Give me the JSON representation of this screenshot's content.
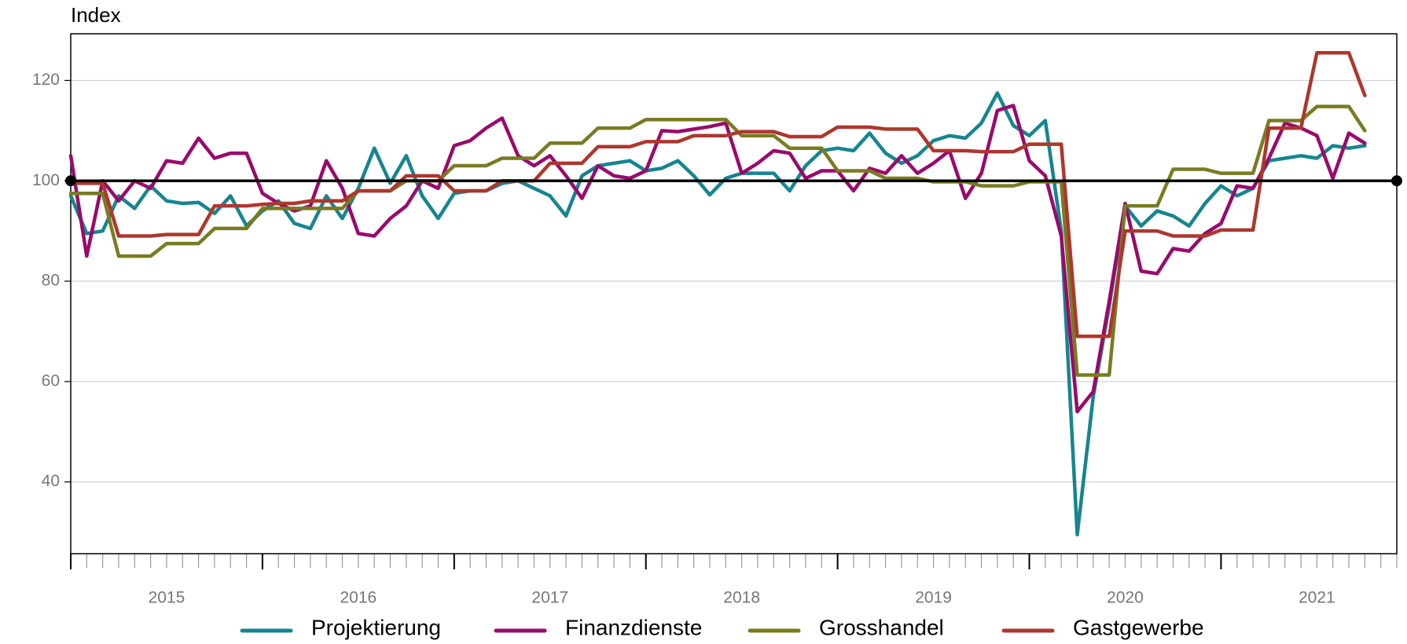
{
  "chart_data": {
    "type": "line",
    "y_label": "Index",
    "x": [
      2015,
      2015.0833,
      2015.1667,
      2015.25,
      2015.3333,
      2015.4167,
      2015.5,
      2015.5833,
      2015.6667,
      2015.75,
      2015.8333,
      2015.9167,
      2016,
      2016.0833,
      2016.1667,
      2016.25,
      2016.3333,
      2016.4167,
      2016.5,
      2016.5833,
      2016.6667,
      2016.75,
      2016.8333,
      2016.9167,
      2017,
      2017.0833,
      2017.1667,
      2017.25,
      2017.3333,
      2017.4167,
      2017.5,
      2017.5833,
      2017.6667,
      2017.75,
      2017.8333,
      2017.9167,
      2018,
      2018.0833,
      2018.1667,
      2018.25,
      2018.3333,
      2018.4167,
      2018.5,
      2018.5833,
      2018.6667,
      2018.75,
      2018.8333,
      2018.9167,
      2019,
      2019.0833,
      2019.1667,
      2019.25,
      2019.3333,
      2019.4167,
      2019.5,
      2019.5833,
      2019.6667,
      2019.75,
      2019.8333,
      2019.9167,
      2020,
      2020.0833,
      2020.1667,
      2020.25,
      2020.3333,
      2020.4167,
      2020.5,
      2020.5833,
      2020.6667,
      2020.75,
      2020.8333,
      2020.9167,
      2021,
      2021.0833,
      2021.1667,
      2021.25,
      2021.3333,
      2021.4167,
      2021.5,
      2021.5833,
      2021.6667,
      2021.75
    ],
    "series": [
      {
        "name": "Projektierung",
        "color": "#16858f",
        "values": [
          97,
          89.5,
          90,
          97,
          94.5,
          99,
          96,
          95.5,
          95.7,
          93.5,
          97,
          91,
          94,
          96,
          91.5,
          90.5,
          97,
          92.5,
          98.5,
          106.5,
          99.5,
          105,
          97,
          92.5,
          97.5,
          98,
          98,
          99.5,
          100,
          98.5,
          97,
          93,
          101,
          103,
          103.5,
          104,
          102,
          102.5,
          104,
          101,
          97.2,
          100.5,
          101.5,
          101.5,
          101.5,
          98,
          103,
          106,
          106.5,
          106,
          109.5,
          105.5,
          103.5,
          105,
          108,
          109,
          108.5,
          111.5,
          117.5,
          111,
          109,
          112,
          90,
          29.5,
          57,
          75,
          95,
          91,
          94,
          93,
          91,
          95.5,
          99,
          97,
          98.5,
          104,
          104.5,
          105,
          104.5,
          107,
          106.5,
          107
        ]
      },
      {
        "name": "Finanzdienste",
        "color": "#990a6c",
        "values": [
          105,
          85,
          100,
          96,
          100,
          98.5,
          104,
          103.5,
          108.5,
          104.5,
          105.5,
          105.5,
          97.5,
          95.5,
          94,
          95,
          104,
          98.5,
          89.5,
          89,
          92.5,
          95,
          100,
          98.5,
          107,
          108,
          110.5,
          112.5,
          105,
          103,
          105,
          101,
          96.5,
          103,
          101,
          100.5,
          102,
          110,
          109.8,
          110.3,
          110.8,
          111.5,
          101.5,
          103.5,
          106,
          105.5,
          100.5,
          102,
          102,
          98,
          102.5,
          101.5,
          105,
          101.5,
          103.5,
          106,
          96.5,
          101.5,
          114,
          115,
          104,
          101,
          89,
          54,
          58,
          76,
          95.5,
          82,
          81.5,
          86.5,
          86,
          89.5,
          91.5,
          99,
          98.5,
          104.5,
          111.5,
          110.5,
          109,
          100.5,
          109.5,
          107.5
        ]
      },
      {
        "name": "Grosshandel",
        "color": "#787b21",
        "values": [
          97.5,
          97.5,
          97.5,
          85,
          85,
          85,
          87.5,
          87.5,
          87.5,
          90.5,
          90.5,
          90.5,
          94.5,
          94.5,
          94.5,
          94.5,
          94.5,
          94.5,
          98,
          98,
          98,
          100,
          100,
          100,
          103,
          103,
          103,
          104.5,
          104.5,
          104.5,
          107.5,
          107.5,
          107.5,
          110.5,
          110.5,
          110.5,
          112.2,
          112.2,
          112.2,
          112.2,
          112.2,
          112.2,
          109,
          109,
          109,
          106.5,
          106.5,
          106.5,
          102,
          102,
          102,
          100.5,
          100.5,
          100.5,
          99.8,
          99.8,
          99.8,
          99,
          99,
          99,
          99.8,
          99.8,
          99.8,
          61.3,
          61.3,
          61.3,
          95,
          95,
          95,
          102.3,
          102.3,
          102.3,
          101.5,
          101.5,
          101.5,
          112,
          112,
          112,
          114.8,
          114.8,
          114.8,
          110
        ]
      },
      {
        "name": "Gastgewerbe",
        "color": "#ad372d",
        "values": [
          99.5,
          99.5,
          99.5,
          89,
          89,
          89,
          89.3,
          89.3,
          89.3,
          95,
          95,
          95,
          95.3,
          95.5,
          95.5,
          96,
          96,
          96,
          98,
          98,
          98,
          101,
          101,
          101,
          98,
          98,
          98,
          100,
          100,
          100,
          103.5,
          103.5,
          103.5,
          106.8,
          106.8,
          106.8,
          107.8,
          107.8,
          107.8,
          109,
          109,
          109,
          109.8,
          109.8,
          109.8,
          108.8,
          108.8,
          108.8,
          110.7,
          110.7,
          110.7,
          110.3,
          110.3,
          110.3,
          106,
          106,
          106,
          105.8,
          105.8,
          105.8,
          107.3,
          107.3,
          107.3,
          69,
          69,
          69,
          90,
          90,
          90,
          89,
          89,
          89,
          90.2,
          90.2,
          90.2,
          110.5,
          110.5,
          110.5,
          125.5,
          125.5,
          125.5,
          117
        ]
      }
    ],
    "xlim": [
      2015,
      2021.9167
    ],
    "xticks": [
      2015,
      2016,
      2017,
      2018,
      2019,
      2020,
      2021
    ],
    "ylim": [
      25.7,
      129.3
    ],
    "yticks": [
      40,
      60,
      80,
      100,
      120
    ],
    "reference_line": 100,
    "grid": true,
    "legend": "bottom"
  }
}
